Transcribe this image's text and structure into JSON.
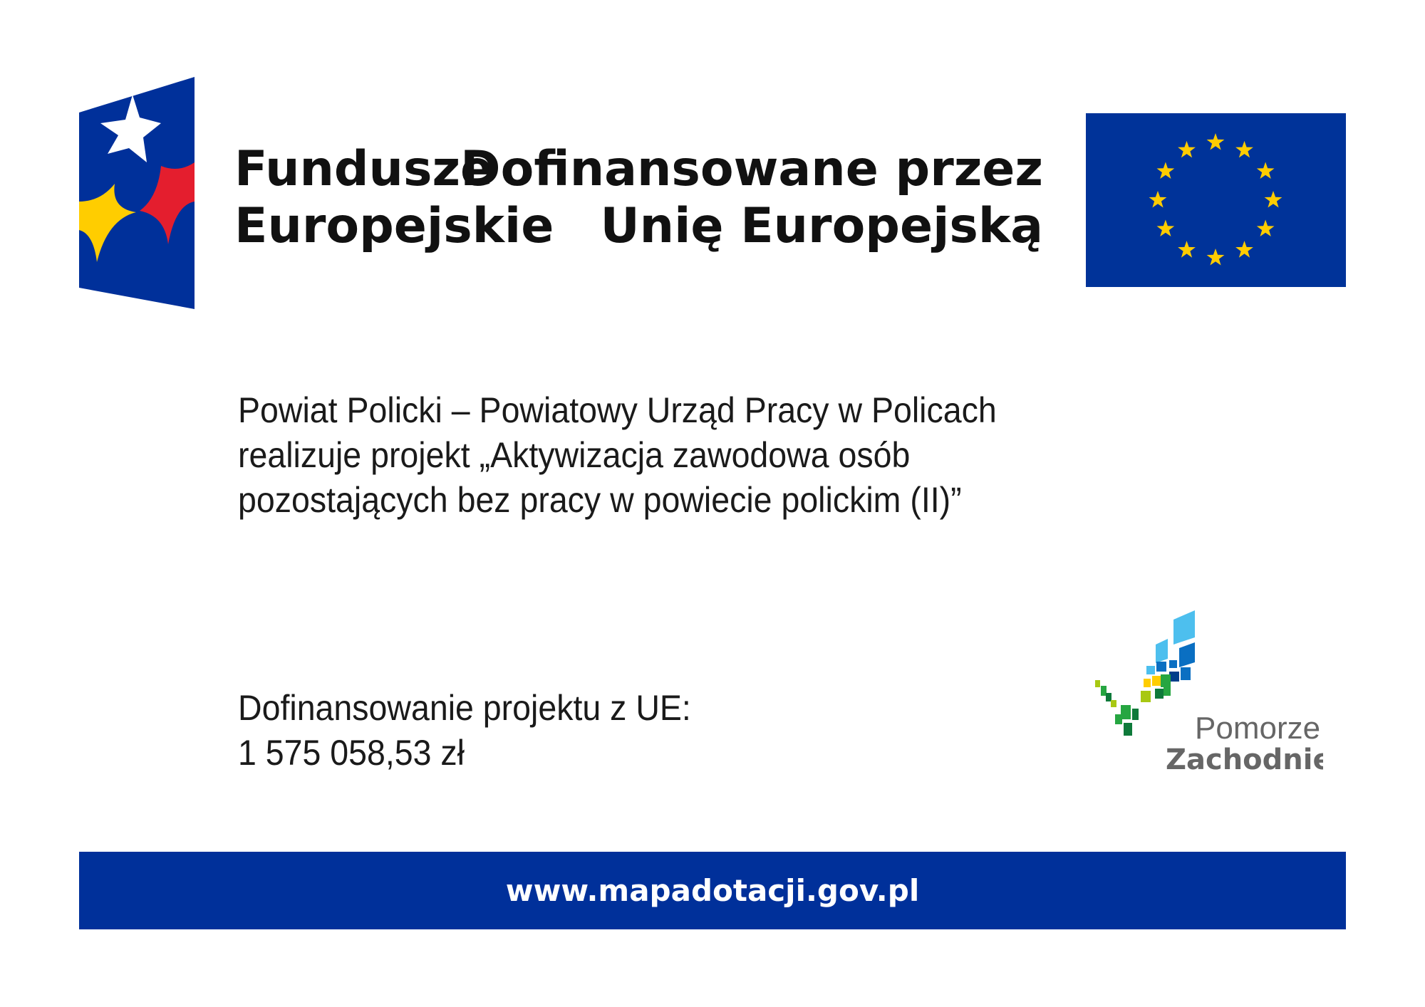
{
  "logos": {
    "fe_logo_text": [
      "Fundusze",
      "Europejskie"
    ],
    "eu_text": [
      "Dofinansowane przez",
      "Unię Europejską"
    ],
    "regional_logo_text": [
      "Pomorze",
      "Zachodnie"
    ]
  },
  "project": {
    "lines": [
      "Powiat Policki – Powiatowy Urząd Pracy w Policach",
      "realizuje projekt „Aktywizacja zawodowa osób",
      "pozostających bez pracy w powiecie polickim (II)”"
    ]
  },
  "funding": {
    "label": "Dofinansowanie projektu z UE:",
    "amount": "1 575 058,53 zł"
  },
  "footer": {
    "url": "www.mapadotacji.gov.pl"
  },
  "colors": {
    "eu_blue": "#003399",
    "star_yellow": "#ffcc00",
    "fe_red": "#e41e2e",
    "bar_blue": "#00309a",
    "regional_gray": "#666666"
  }
}
